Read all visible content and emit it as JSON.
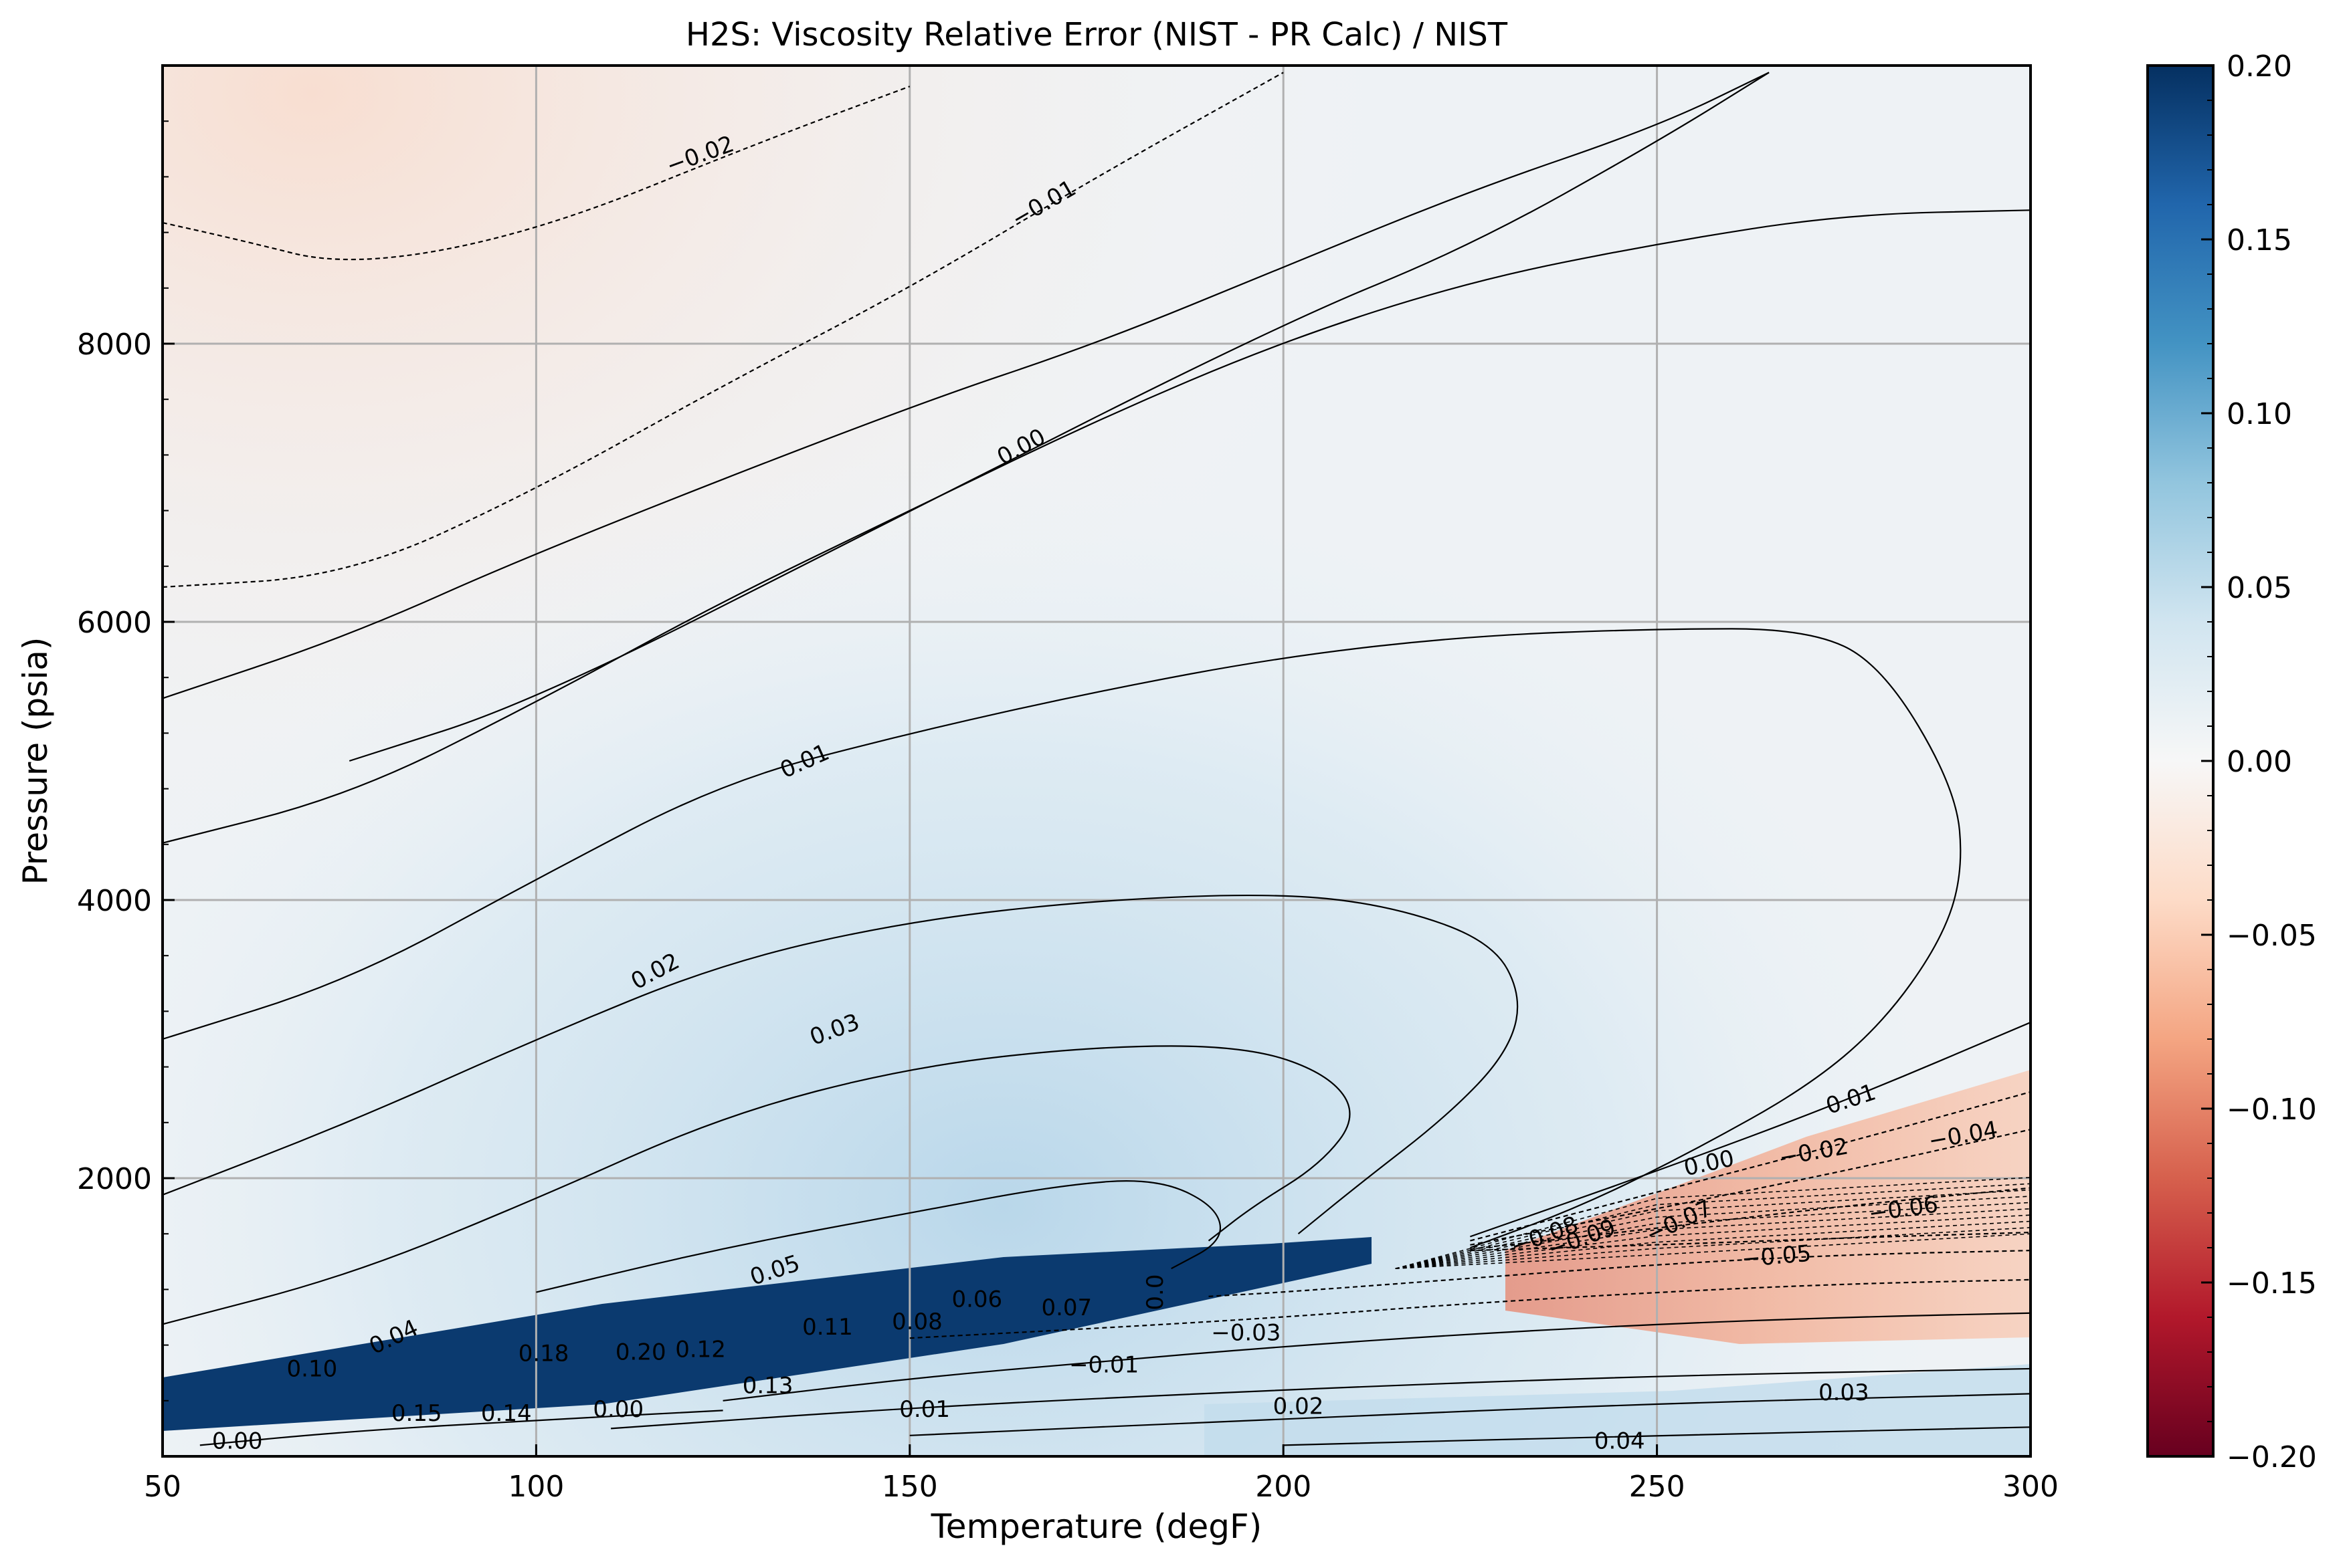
{
  "chart_data": {
    "type": "heatmap",
    "title": "H2S: Viscosity Relative Error (NIST - PR Calc) / NIST",
    "xlabel": "Temperature (degF)",
    "ylabel": "Pressure (psia)",
    "xlim": [
      50,
      300
    ],
    "ylim": [
      0,
      10000
    ],
    "x_ticks": [
      50,
      100,
      150,
      200,
      250,
      300
    ],
    "y_ticks": [
      2000,
      4000,
      6000,
      8000
    ],
    "grid": true,
    "colormap": "RdBu",
    "colorbar": {
      "vmin": -0.2,
      "vmax": 0.2,
      "ticks": [
        "0.20",
        "0.15",
        "0.10",
        "0.05",
        "0.00",
        "−0.05",
        "−0.10",
        "−0.15",
        "−0.20"
      ],
      "tick_values": [
        0.2,
        0.15,
        0.1,
        0.05,
        0.0,
        -0.05,
        -0.1,
        -0.15,
        -0.2
      ]
    },
    "contours": [
      {
        "level": -0.02,
        "points": [
          [
            50,
            8870
          ],
          [
            60,
            8750
          ],
          [
            75,
            8550
          ],
          [
            100,
            8800
          ],
          [
            130,
            9450
          ],
          [
            150,
            9850
          ]
        ]
      },
      {
        "level": -0.01,
        "points": [
          [
            50,
            6250
          ],
          [
            75,
            6330
          ],
          [
            100,
            6950
          ],
          [
            125,
            7700
          ],
          [
            150,
            8400
          ],
          [
            175,
            9200
          ],
          [
            200,
            9950
          ]
        ]
      },
      {
        "level": 0.0,
        "points": [
          [
            50,
            5450
          ],
          [
            75,
            5900
          ],
          [
            100,
            6500
          ],
          [
            150,
            7550
          ],
          [
            175,
            8000
          ],
          [
            200,
            8550
          ],
          [
            225,
            9100
          ],
          [
            250,
            9560
          ],
          [
            265,
            9950
          ]
        ]
      },
      {
        "level": 0.0,
        "points": [
          [
            75,
            5000
          ],
          [
            100,
            5430
          ],
          [
            150,
            6800
          ],
          [
            200,
            8150
          ],
          [
            225,
            8700
          ],
          [
            250,
            9450
          ],
          [
            265,
            9950
          ]
        ]
      },
      {
        "level": 0.01,
        "points": [
          [
            50,
            4410
          ],
          [
            75,
            4750
          ],
          [
            100,
            5420
          ],
          [
            125,
            6150
          ],
          [
            150,
            6800
          ],
          [
            175,
            7450
          ],
          [
            200,
            8020
          ],
          [
            225,
            8450
          ],
          [
            250,
            8720
          ],
          [
            275,
            8930
          ],
          [
            300,
            8960
          ]
        ]
      },
      {
        "level": 0.01,
        "points": [
          [
            50,
            3000
          ],
          [
            75,
            3420
          ],
          [
            100,
            4150
          ],
          [
            125,
            4850
          ],
          [
            150,
            5200
          ],
          [
            175,
            5500
          ],
          [
            200,
            5750
          ],
          [
            225,
            5900
          ],
          [
            250,
            5950
          ],
          [
            270,
            5950
          ],
          [
            280,
            5700
          ],
          [
            290,
            4800
          ],
          [
            291,
            4200
          ],
          [
            288,
            3700
          ],
          [
            280,
            3100
          ],
          [
            270,
            2650
          ],
          [
            255,
            2200
          ],
          [
            240,
            1800
          ],
          [
            225,
            1500
          ]
        ]
      },
      {
        "level": 0.02,
        "points": [
          [
            50,
            1880
          ],
          [
            75,
            2400
          ],
          [
            100,
            3000
          ],
          [
            125,
            3550
          ],
          [
            150,
            3850
          ],
          [
            175,
            4000
          ],
          [
            200,
            4050
          ],
          [
            215,
            3950
          ],
          [
            228,
            3700
          ],
          [
            232,
            3300
          ],
          [
            230,
            2900
          ],
          [
            222,
            2450
          ],
          [
            210,
            1950
          ],
          [
            202,
            1600
          ]
        ]
      },
      {
        "level": 0.03,
        "points": [
          [
            50,
            950
          ],
          [
            75,
            1300
          ],
          [
            100,
            1850
          ],
          [
            125,
            2450
          ],
          [
            150,
            2800
          ],
          [
            175,
            2950
          ],
          [
            195,
            2950
          ],
          [
            206,
            2750
          ],
          [
            210,
            2450
          ],
          [
            205,
            2100
          ],
          [
            196,
            1800
          ],
          [
            190,
            1550
          ]
        ]
      },
      {
        "level": 0.05,
        "points": [
          [
            100,
            1180
          ],
          [
            125,
            1500
          ],
          [
            150,
            1750
          ],
          [
            170,
            1950
          ],
          [
            183,
            2000
          ],
          [
            191,
            1800
          ],
          [
            192,
            1550
          ],
          [
            185,
            1350
          ]
        ]
      },
      {
        "level": -0.05,
        "points": [
          [
            225,
            1480
          ],
          [
            250,
            1520
          ],
          [
            275,
            1570
          ],
          [
            300,
            1610
          ]
        ]
      },
      {
        "level": -0.06,
        "points": [
          [
            225,
            1490
          ],
          [
            250,
            1640
          ],
          [
            275,
            1800
          ],
          [
            300,
            1930
          ]
        ]
      },
      {
        "level": -0.04,
        "points": [
          [
            225,
            1520
          ],
          [
            250,
            1780
          ],
          [
            275,
            2050
          ],
          [
            300,
            2350
          ]
        ]
      },
      {
        "level": -0.02,
        "points": [
          [
            225,
            1550
          ],
          [
            250,
            1900
          ],
          [
            275,
            2250
          ],
          [
            300,
            2620
          ]
        ]
      },
      {
        "level": 0.01,
        "points": [
          [
            225,
            1580
          ],
          [
            250,
            2050
          ],
          [
            275,
            2550
          ],
          [
            300,
            3120
          ]
        ]
      },
      {
        "level": -0.03,
        "points": [
          [
            190,
            1150
          ],
          [
            200,
            1180
          ],
          [
            225,
            1280
          ],
          [
            250,
            1380
          ],
          [
            275,
            1450
          ],
          [
            300,
            1480
          ]
        ]
      },
      {
        "level": -0.01,
        "points": [
          [
            150,
            850
          ],
          [
            175,
            920
          ],
          [
            200,
            1000
          ],
          [
            225,
            1100
          ],
          [
            250,
            1180
          ],
          [
            275,
            1240
          ],
          [
            300,
            1270
          ]
        ]
      },
      {
        "level": 0.01,
        "points": [
          [
            125,
            400
          ],
          [
            150,
            560
          ],
          [
            175,
            680
          ],
          [
            200,
            790
          ],
          [
            225,
            880
          ],
          [
            250,
            950
          ],
          [
            275,
            1000
          ],
          [
            300,
            1030
          ]
        ]
      },
      {
        "level": 0.02,
        "points": [
          [
            110,
            200
          ],
          [
            150,
            350
          ],
          [
            200,
            480
          ],
          [
            250,
            580
          ],
          [
            300,
            630
          ]
        ]
      },
      {
        "level": 0.03,
        "points": [
          [
            150,
            150
          ],
          [
            200,
            270
          ],
          [
            250,
            380
          ],
          [
            300,
            450
          ]
        ]
      },
      {
        "level": 0.04,
        "points": [
          [
            200,
            80
          ],
          [
            250,
            150
          ],
          [
            300,
            210
          ]
        ]
      },
      {
        "level": 0.0,
        "points": [
          [
            55,
            80
          ],
          [
            75,
            180
          ],
          [
            100,
            260
          ],
          [
            125,
            330
          ]
        ]
      }
    ],
    "contour_labels": [
      {
        "text": "−0.02",
        "x": 122,
        "y": 9350,
        "angle": -20
      },
      {
        "text": "−0.01",
        "x": 168,
        "y": 9000,
        "angle": -30
      },
      {
        "text": "0.00",
        "x": 165,
        "y": 7250,
        "angle": -28
      },
      {
        "text": "0.01",
        "x": 136,
        "y": 4990,
        "angle": -24
      },
      {
        "text": "0.02",
        "x": 116,
        "y": 3480,
        "angle": -28
      },
      {
        "text": "0.03",
        "x": 140,
        "y": 3060,
        "angle": -20
      },
      {
        "text": "0.05",
        "x": 132,
        "y": 1330,
        "angle": -18
      },
      {
        "text": "0.04",
        "x": 81,
        "y": 850,
        "angle": -25
      },
      {
        "text": "0.10",
        "x": 70,
        "y": 620,
        "angle": 0
      },
      {
        "text": "0.15",
        "x": 84,
        "y": 300,
        "angle": 0
      },
      {
        "text": "0.14",
        "x": 96,
        "y": 300,
        "angle": 0
      },
      {
        "text": "0.00",
        "x": 60,
        "y": 100,
        "angle": 0
      },
      {
        "text": "0.18",
        "x": 101,
        "y": 730,
        "angle": 0
      },
      {
        "text": "0.20",
        "x": 114,
        "y": 740,
        "angle": 0
      },
      {
        "text": "0.12",
        "x": 122,
        "y": 760,
        "angle": 0
      },
      {
        "text": "0.11",
        "x": 139,
        "y": 920,
        "angle": 0
      },
      {
        "text": "0.08",
        "x": 151,
        "y": 960,
        "angle": 0
      },
      {
        "text": "0.06",
        "x": 159,
        "y": 1120,
        "angle": 0
      },
      {
        "text": "0.07",
        "x": 171,
        "y": 1060,
        "angle": 0
      },
      {
        "text": "0.0",
        "x": 183,
        "y": 1180,
        "angle": -90
      },
      {
        "text": "0.13",
        "x": 131,
        "y": 500,
        "angle": 0
      },
      {
        "text": "0.00",
        "x": 111,
        "y": 330,
        "angle": 0
      },
      {
        "text": "0.01",
        "x": 152,
        "y": 330,
        "angle": 0
      },
      {
        "text": "−0.01",
        "x": 176,
        "y": 650,
        "angle": 0
      },
      {
        "text": "−0.03",
        "x": 195,
        "y": 880,
        "angle": 0
      },
      {
        "text": "0.02",
        "x": 202,
        "y": 350,
        "angle": 0
      },
      {
        "text": "0.03",
        "x": 275,
        "y": 450,
        "angle": 0
      },
      {
        "text": "0.04",
        "x": 245,
        "y": 100,
        "angle": 0
      },
      {
        "text": "0.01",
        "x": 276,
        "y": 2560,
        "angle": -18
      },
      {
        "text": "0.00",
        "x": 257,
        "y": 2100,
        "angle": -12
      },
      {
        "text": "−0.02",
        "x": 271,
        "y": 2180,
        "angle": -10
      },
      {
        "text": "−0.04",
        "x": 291,
        "y": 2300,
        "angle": -10
      },
      {
        "text": "−0.06",
        "x": 283,
        "y": 1770,
        "angle": -8
      },
      {
        "text": "−0.05",
        "x": 266,
        "y": 1430,
        "angle": -5
      },
      {
        "text": "−0.07",
        "x": 253,
        "y": 1680,
        "angle": -25
      },
      {
        "text": "−0.09",
        "x": 240,
        "y": 1560,
        "angle": -20
      },
      {
        "text": "−0.08",
        "x": 235,
        "y": 1580,
        "angle": -20
      }
    ]
  }
}
